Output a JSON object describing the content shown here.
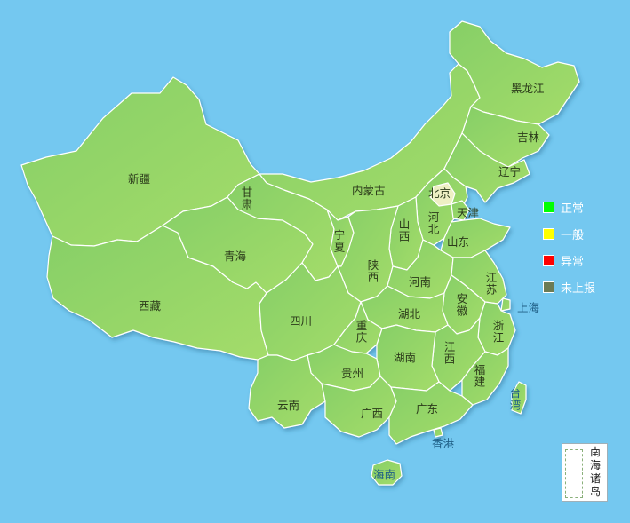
{
  "map": {
    "ocean_color": "#74c8f0",
    "land_color": "#8fd46a",
    "beijing_color": "#eef0c4",
    "border_color": "#ffffff"
  },
  "provinces": {
    "xinjiang": "新疆",
    "xizang": "西藏",
    "qinghai": "青海",
    "gansu": "甘肃",
    "neimenggu": "内蒙古",
    "heilongjiang": "黑龙江",
    "jilin": "吉林",
    "liaoning": "辽宁",
    "beijing": "北京",
    "tianjin": "天津",
    "hebei": "河北",
    "shanxi": "山西",
    "shandong": "山东",
    "ningxia": "宁夏",
    "shaanxi": "陕西",
    "henan": "河南",
    "jiangsu": "江苏",
    "shanghai": "上海",
    "anhui": "安徽",
    "hubei": "湖北",
    "sichuan": "四川",
    "chongqing": "重庆",
    "zhejiang": "浙江",
    "jiangxi": "江西",
    "hunan": "湖南",
    "guizhou": "贵州",
    "fujian": "福建",
    "yunnan": "云南",
    "guangxi": "广西",
    "guangdong": "广东",
    "taiwan": "台湾",
    "xianggang": "香港",
    "hainan": "海南"
  },
  "legend": [
    {
      "label": "正常",
      "color": "#00ff00"
    },
    {
      "label": "一般",
      "color": "#ffff00"
    },
    {
      "label": "异常",
      "color": "#ff0000"
    },
    {
      "label": "未上报",
      "color": "#6b7b55"
    }
  ],
  "inset": {
    "title": "南海诸岛"
  }
}
